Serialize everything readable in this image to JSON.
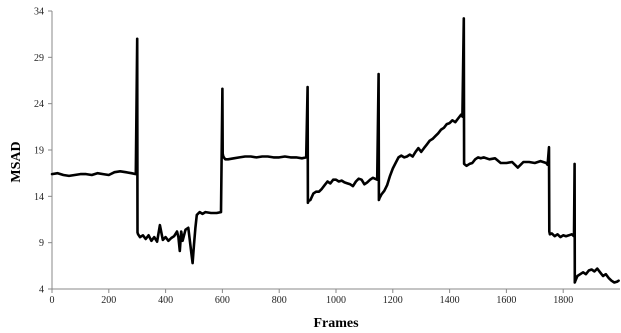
{
  "chart_data": {
    "type": "line",
    "title": "",
    "xlabel": "Frames",
    "ylabel": "MSAD",
    "xlim": [
      0,
      2000
    ],
    "ylim": [
      4,
      34
    ],
    "xticks": [
      0,
      200,
      400,
      600,
      800,
      1000,
      1200,
      1400,
      1600,
      1800
    ],
    "yticks": [
      4,
      9,
      14,
      19,
      24,
      29,
      34
    ],
    "grid": false,
    "legend": "none",
    "line_color": "#000000",
    "series": [
      {
        "x": [
          0,
          20,
          40,
          60,
          80,
          100,
          120,
          140,
          160,
          180,
          200,
          220,
          240,
          260,
          280,
          295,
          300,
          301,
          303,
          310,
          320,
          330,
          340,
          350,
          360,
          370,
          380,
          390,
          400,
          410,
          420,
          430,
          440,
          445,
          450,
          455,
          460,
          470,
          480,
          490,
          495,
          500,
          505,
          510,
          520,
          530,
          540,
          560,
          580,
          595,
          600,
          601,
          603,
          610,
          620,
          640,
          660,
          680,
          700,
          720,
          740,
          760,
          780,
          800,
          820,
          840,
          860,
          880,
          895,
          900,
          901,
          903,
          910,
          920,
          930,
          940,
          950,
          960,
          970,
          980,
          990,
          1000,
          1010,
          1020,
          1030,
          1040,
          1050,
          1060,
          1070,
          1080,
          1090,
          1100,
          1110,
          1120,
          1130,
          1145,
          1150,
          1151,
          1153,
          1160,
          1170,
          1180,
          1190,
          1200,
          1210,
          1220,
          1230,
          1240,
          1250,
          1260,
          1270,
          1280,
          1290,
          1300,
          1310,
          1320,
          1330,
          1340,
          1350,
          1360,
          1370,
          1380,
          1390,
          1400,
          1410,
          1420,
          1430,
          1440,
          1445,
          1450,
          1451,
          1455,
          1460,
          1470,
          1480,
          1490,
          1500,
          1510,
          1520,
          1540,
          1560,
          1580,
          1600,
          1620,
          1640,
          1660,
          1680,
          1700,
          1720,
          1740,
          1745,
          1750,
          1751,
          1753,
          1760,
          1770,
          1780,
          1790,
          1800,
          1810,
          1820,
          1830,
          1838,
          1840,
          1841,
          1843,
          1850,
          1860,
          1870,
          1880,
          1890,
          1900,
          1910,
          1920,
          1930,
          1940,
          1950,
          1960,
          1970,
          1980,
          1990,
          1995
        ],
        "y": [
          16.4,
          16.5,
          16.3,
          16.2,
          16.3,
          16.4,
          16.4,
          16.3,
          16.5,
          16.4,
          16.3,
          16.6,
          16.7,
          16.6,
          16.5,
          16.4,
          31.0,
          10.1,
          9.9,
          9.6,
          9.8,
          9.4,
          9.8,
          9.2,
          9.6,
          9.1,
          10.9,
          9.3,
          9.6,
          9.2,
          9.5,
          9.7,
          10.2,
          9.6,
          8.1,
          10.2,
          9.2,
          10.4,
          10.6,
          8.0,
          6.8,
          8.8,
          10.6,
          12.0,
          12.3,
          12.1,
          12.3,
          12.2,
          12.2,
          12.3,
          25.6,
          18.6,
          18.3,
          18.0,
          18.0,
          18.1,
          18.2,
          18.3,
          18.3,
          18.2,
          18.3,
          18.3,
          18.2,
          18.2,
          18.3,
          18.2,
          18.2,
          18.1,
          18.2,
          25.8,
          13.3,
          13.5,
          13.6,
          14.3,
          14.5,
          14.5,
          14.8,
          15.2,
          15.6,
          15.4,
          15.8,
          15.8,
          15.6,
          15.7,
          15.5,
          15.4,
          15.3,
          15.1,
          15.6,
          15.9,
          15.8,
          15.3,
          15.5,
          15.8,
          16.0,
          15.8,
          27.2,
          13.6,
          13.8,
          14.2,
          14.6,
          15.2,
          16.2,
          17.0,
          17.6,
          18.2,
          18.4,
          18.2,
          18.3,
          18.5,
          18.3,
          18.8,
          19.2,
          18.8,
          19.2,
          19.6,
          20.0,
          20.2,
          20.5,
          20.8,
          21.2,
          21.4,
          21.8,
          21.9,
          22.2,
          22.0,
          22.4,
          22.8,
          22.6,
          33.2,
          17.5,
          17.4,
          17.3,
          17.5,
          17.6,
          18.0,
          18.2,
          18.1,
          18.2,
          18.0,
          18.1,
          17.6,
          17.6,
          17.7,
          17.1,
          17.7,
          17.7,
          17.6,
          17.8,
          17.6,
          17.4,
          19.3,
          10.2,
          9.9,
          10.0,
          9.7,
          9.9,
          9.6,
          9.8,
          9.7,
          9.8,
          9.9,
          9.7,
          17.5,
          4.7,
          4.9,
          5.4,
          5.6,
          5.8,
          5.6,
          6.0,
          6.1,
          5.9,
          6.2,
          5.8,
          5.4,
          5.6,
          5.2,
          4.9,
          4.7,
          4.8,
          4.9
        ]
      }
    ]
  }
}
